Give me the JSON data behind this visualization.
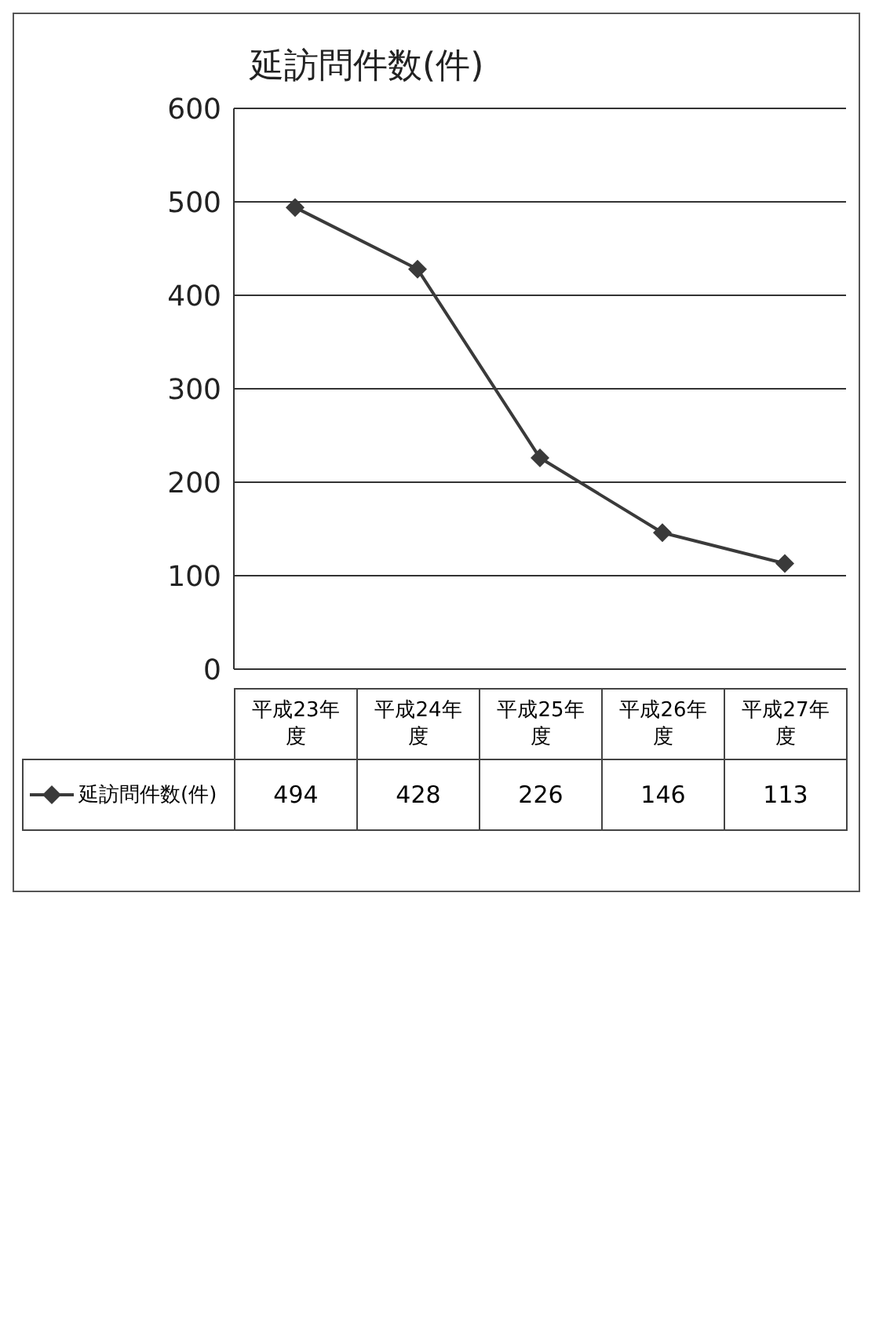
{
  "chart_data": {
    "type": "line",
    "title": "延訪問件数(件)",
    "categories": [
      "平成23年度",
      "平成24年度",
      "平成25年度",
      "平成26年度",
      "平成27年度"
    ],
    "series": [
      {
        "name": "延訪問件数(件)",
        "color": "#3a3a3a",
        "values": [
          494,
          428,
          226,
          146,
          113
        ]
      }
    ],
    "ylim": [
      0,
      600
    ],
    "yticks": [
      0,
      100,
      200,
      300,
      400,
      500,
      600
    ],
    "grid": "y",
    "legend": "bottom",
    "marker": "diamond",
    "line_style": "solid",
    "data_labels": true
  }
}
